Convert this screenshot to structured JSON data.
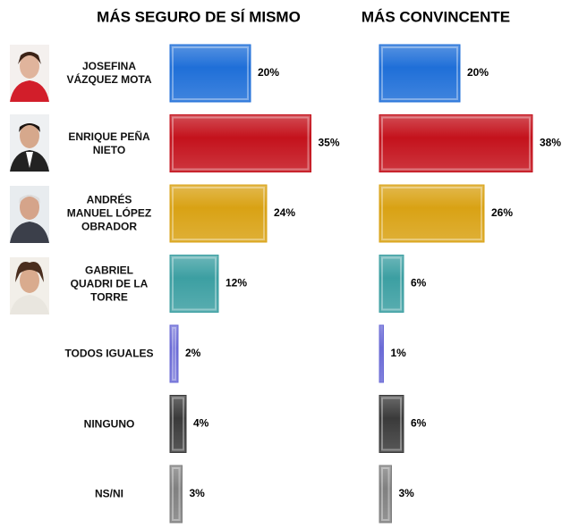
{
  "chart_data": {
    "type": "bar",
    "categories": [
      "JOSEFINA VÁZQUEZ MOTA",
      "ENRIQUE PEÑA NIETO",
      "ANDRÉS MANUEL LÓPEZ OBRADOR",
      "GABRIEL QUADRI DE LA TORRE",
      "TODOS IGUALES",
      "NINGUNO",
      "NS/NI"
    ],
    "colors": [
      "#1f6fd8",
      "#c4121c",
      "#d9a214",
      "#3c9fa2",
      "#6b6bd6",
      "#3a3a3a",
      "#808080"
    ],
    "series": [
      {
        "name": "MÁS SEGURO DE SÍ MISMO",
        "values": [
          20,
          35,
          24,
          12,
          2,
          4,
          3
        ],
        "value_labels": [
          "20%",
          "35%",
          "24%",
          "12%",
          "2%",
          "4%",
          "3%"
        ]
      },
      {
        "name": "MÁS CONVINCENTE",
        "values": [
          20,
          38,
          26,
          6,
          1,
          6,
          3
        ],
        "value_labels": [
          "20%",
          "38%",
          "26%",
          "6%",
          "1%",
          "6%",
          "3%"
        ]
      }
    ]
  }
}
